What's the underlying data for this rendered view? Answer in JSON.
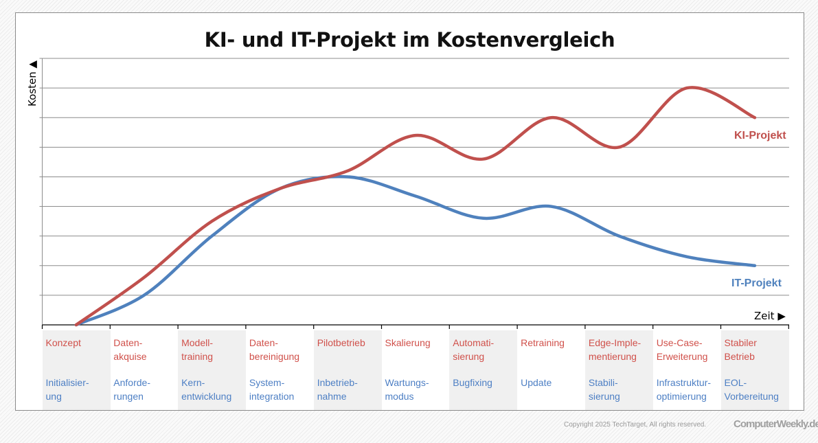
{
  "chart_data": {
    "type": "line",
    "title": "KI- und IT-Projekt im Kostenvergleich",
    "ylabel": "Kosten ▲",
    "xlabel": "Zeit ▶",
    "ylim": [
      0,
      9
    ],
    "grid": true,
    "y_tick_labels": false,
    "phases": [
      {
        "ki": "Konzept",
        "it": "Initialisier-\nung"
      },
      {
        "ki": "Daten-\nakquise",
        "it": "Anforde-\nrungen"
      },
      {
        "ki": "Modell-\ntraining",
        "it": "Kern-\nentwicklung"
      },
      {
        "ki": "Daten-\nbereinigung",
        "it": "System-\nintegration"
      },
      {
        "ki": "Pilotbetrieb",
        "it": "Inbetrieb-\nnahme"
      },
      {
        "ki": "Skalierung",
        "it": "Wartungs-\nmodus"
      },
      {
        "ki": "Automati-\nsierung",
        "it": "Bugfixing"
      },
      {
        "ki": "Retraining",
        "it": "Update"
      },
      {
        "ki": "Edge-Imple-\nmentierung",
        "it": "Stabili-\nsierung"
      },
      {
        "ki": "Use-Case-\nErweiterung",
        "it": "Infrastruktur-\noptimierung"
      },
      {
        "ki": "Stabiler\nBetrieb",
        "it": "EOL-\nVorbereitung"
      }
    ],
    "series": [
      {
        "name": "KI-Projekt",
        "color": "#c0504d",
        "values": [
          0,
          1.6,
          3.5,
          4.6,
          5.2,
          6.4,
          5.6,
          7,
          6,
          8,
          7
        ]
      },
      {
        "name": "IT-Projekt",
        "color": "#4f81bd",
        "values": [
          0,
          1.0,
          3.0,
          4.6,
          5,
          4.35,
          3.6,
          4,
          3,
          2.3,
          2
        ]
      }
    ]
  },
  "footer": {
    "copyright": "Copyright 2025  TechTarget, All rights reserved.",
    "logo": "ComputerWeekly.de"
  }
}
